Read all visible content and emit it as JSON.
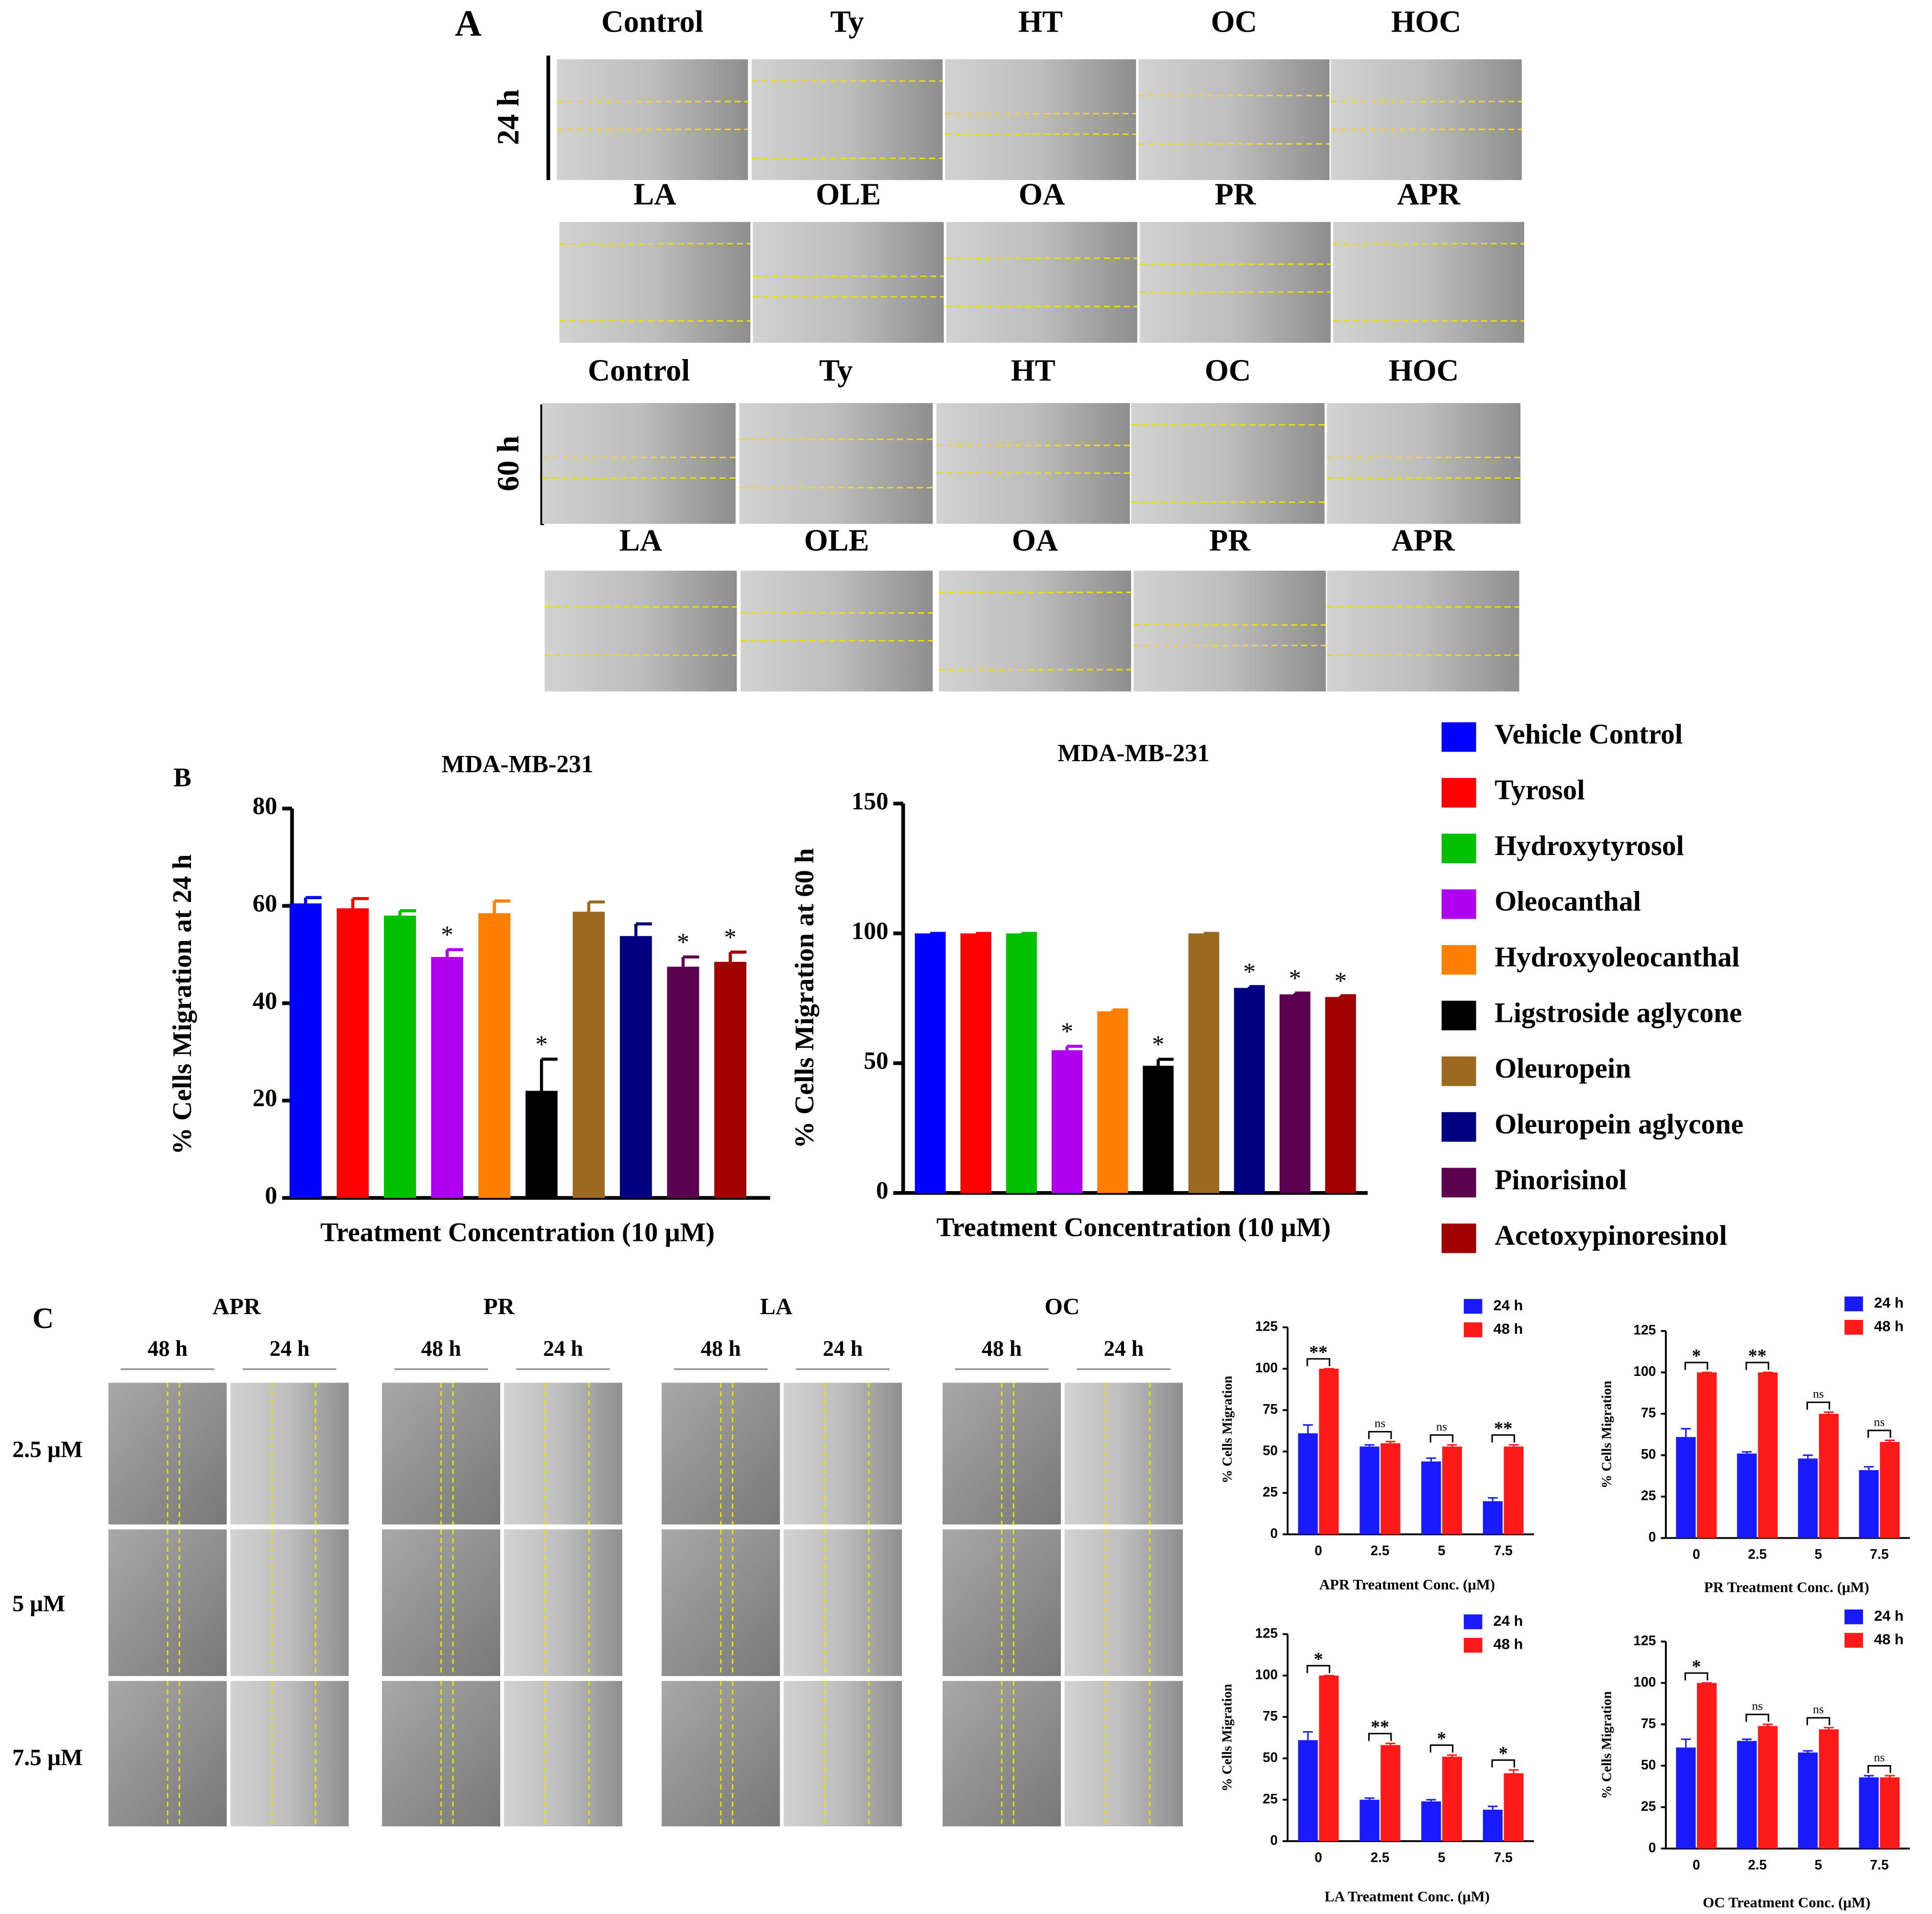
{
  "panel_a": {
    "label": "A",
    "blocks": [
      {
        "time": "24 h",
        "rows": [
          [
            "Control",
            "Ty",
            "HT",
            "OC",
            "HOC"
          ],
          [
            "LA",
            "OLE",
            "OA",
            "PR",
            "APR"
          ]
        ]
      },
      {
        "time": "60 h",
        "rows": [
          [
            "Control",
            "Ty",
            "HT",
            "OC",
            "HOC"
          ],
          [
            "LA",
            "OLE",
            "OA",
            "PR",
            "APR"
          ]
        ]
      }
    ]
  },
  "panel_b_label": "B",
  "panel_c": {
    "label": "C",
    "groups": [
      {
        "name": "APR",
        "times": [
          "48 h",
          "24 h"
        ]
      },
      {
        "name": "PR",
        "times": [
          "48 h",
          "24 h"
        ]
      },
      {
        "name": "LA",
        "times": [
          "48 h",
          "24 h"
        ]
      },
      {
        "name": "OC",
        "times": [
          "48 h",
          "24 h"
        ]
      }
    ],
    "rows": [
      "2.5 μM",
      "5 μM",
      "7.5 μM"
    ]
  },
  "chart_data": [
    {
      "type": "bar",
      "title": "MDA-MB-231",
      "y_label": "% Cells Migration at 24 h",
      "x_label": "Treatment Concentration (10 μM)",
      "categories": [
        "Vehicle Control",
        "Tyrosol",
        "Hydroxytyrosol",
        "Oleocanthal",
        "Hydroxyoleocanthal",
        "Ligstroside aglycone",
        "Oleuropein",
        "Oleuropein aglycone",
        "Pinorisinol",
        "Acetoxypinoresinol"
      ],
      "colors": [
        "#0000ff",
        "#ff0000",
        "#00c000",
        "#b000f0",
        "#ff8000",
        "#000000",
        "#9b6a1f",
        "#000080",
        "#5c0050",
        "#a00000"
      ],
      "values": [
        60.5,
        59.5,
        58,
        49.5,
        58.5,
        22,
        58.8,
        53.8,
        47.5,
        48.5
      ],
      "errors": [
        1.2,
        2,
        1,
        1.5,
        2.5,
        6.5,
        2,
        2.5,
        2,
        2
      ],
      "significance": [
        null,
        null,
        null,
        "*",
        null,
        "*",
        null,
        null,
        "*",
        "*"
      ],
      "ylim": [
        0,
        80
      ],
      "yticks": [
        0,
        20,
        40,
        60,
        80
      ]
    },
    {
      "type": "bar",
      "title": "MDA-MB-231",
      "y_label": "% Cells Migration at 60 h",
      "x_label": "Treatment Concentration (10 μM)",
      "colors": [
        "#0000ff",
        "#ff0000",
        "#00c000",
        "#b000f0",
        "#ff8000",
        "#000000",
        "#9b6a1f",
        "#000080",
        "#5c0050",
        "#a00000"
      ],
      "values": [
        100,
        100,
        100,
        55,
        70,
        49,
        100,
        79,
        76.5,
        75.5
      ],
      "errors": [
        0,
        0,
        0,
        1.5,
        0.5,
        2.5,
        0,
        0.5,
        0.5,
        0.5
      ],
      "significance": [
        null,
        null,
        null,
        "*",
        null,
        "*",
        null,
        "*",
        "*",
        "*"
      ],
      "ylim": [
        0,
        150
      ],
      "yticks": [
        0,
        50,
        100,
        150
      ]
    },
    {
      "type": "grouped_bar",
      "y_label": "% Cells Migration",
      "x_label": "APR Treatment Conc. (μM)",
      "categories": [
        "0",
        "2.5",
        "5",
        "7.5"
      ],
      "series": [
        {
          "name": "24 h",
          "color": "#1a1aff",
          "values": [
            61,
            53,
            44,
            20
          ],
          "errors": [
            5,
            1,
            2,
            2
          ]
        },
        {
          "name": "48 h",
          "color": "#ff1a1a",
          "values": [
            100,
            55,
            53,
            53
          ],
          "errors": [
            0,
            1,
            1,
            1
          ]
        }
      ],
      "significance": [
        "**",
        "ns",
        "ns",
        "**"
      ],
      "ylim": [
        0,
        125
      ],
      "yticks": [
        0,
        25,
        50,
        75,
        100,
        125
      ]
    },
    {
      "type": "grouped_bar",
      "y_label": "% Cells Migration",
      "x_label": "PR Treatment Conc. (μM)",
      "categories": [
        "0",
        "2.5",
        "5",
        "7.5"
      ],
      "series": [
        {
          "name": "24 h",
          "color": "#1a1aff",
          "values": [
            61,
            51,
            48,
            41
          ],
          "errors": [
            5,
            1,
            2,
            2
          ]
        },
        {
          "name": "48 h",
          "color": "#ff1a1a",
          "values": [
            100,
            100,
            75,
            58
          ],
          "errors": [
            0,
            0,
            1,
            1
          ]
        }
      ],
      "significance": [
        "*",
        "**",
        "ns",
        "ns"
      ],
      "ylim": [
        0,
        125
      ],
      "yticks": [
        0,
        25,
        50,
        75,
        100,
        125
      ]
    },
    {
      "type": "grouped_bar",
      "y_label": "% Cells Migration",
      "x_label": "LA Treatment Conc. (μM)",
      "categories": [
        "0",
        "2.5",
        "5",
        "7.5"
      ],
      "series": [
        {
          "name": "24 h",
          "color": "#1a1aff",
          "values": [
            61,
            25,
            24,
            19
          ],
          "errors": [
            5,
            1,
            1,
            2
          ]
        },
        {
          "name": "48 h",
          "color": "#ff1a1a",
          "values": [
            100,
            58,
            51,
            41
          ],
          "errors": [
            0,
            1,
            1,
            2
          ]
        }
      ],
      "significance": [
        "*",
        "**",
        "*",
        "*"
      ],
      "ylim": [
        0,
        125
      ],
      "yticks": [
        0,
        25,
        50,
        75,
        100,
        125
      ]
    },
    {
      "type": "grouped_bar",
      "y_label": "% Cells Migration",
      "x_label": "OC Treatment Conc. (μM)",
      "categories": [
        "0",
        "2.5",
        "5",
        "7.5"
      ],
      "series": [
        {
          "name": "24 h",
          "color": "#1a1aff",
          "values": [
            61,
            65,
            58,
            43
          ],
          "errors": [
            5,
            1,
            1,
            1
          ]
        },
        {
          "name": "48 h",
          "color": "#ff1a1a",
          "values": [
            100,
            74,
            72,
            43
          ],
          "errors": [
            0,
            1,
            1,
            1
          ]
        }
      ],
      "significance": [
        "*",
        "ns",
        "ns",
        "ns"
      ],
      "ylim": [
        0,
        125
      ],
      "yticks": [
        0,
        25,
        50,
        75,
        100,
        125
      ]
    }
  ]
}
